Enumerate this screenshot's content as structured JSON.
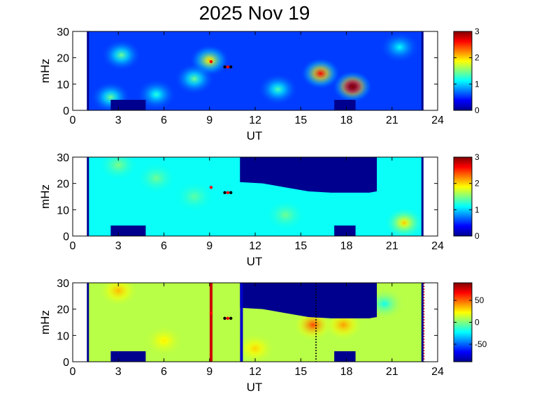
{
  "title": "2025 Nov 19",
  "colors": {
    "background_fill": "#00008f",
    "jet": [
      "#00008f",
      "#0000ff",
      "#0080ff",
      "#00ffff",
      "#80ff80",
      "#ffff00",
      "#ff8000",
      "#ff0000",
      "#800000"
    ]
  },
  "chart_data": [
    {
      "type": "heatmap",
      "xlabel": "UT",
      "ylabel": "mHz",
      "xlim": [
        0,
        24
      ],
      "ylim": [
        0,
        30
      ],
      "xticks": [
        0,
        3,
        6,
        9,
        12,
        15,
        18,
        21,
        24
      ],
      "yticks": [
        0,
        10,
        20,
        30
      ],
      "data_range_ut": [
        1.0,
        23.0
      ],
      "colorbar": {
        "range": [
          0,
          3
        ],
        "ticks": [
          0,
          1,
          2,
          3
        ]
      },
      "base_level": 0.55,
      "blobs": [
        {
          "ut": 3.2,
          "freq": 21,
          "peak": 0.9
        },
        {
          "ut": 9.0,
          "freq": 19,
          "peak": 1.5
        },
        {
          "ut": 8.0,
          "freq": 12,
          "peak": 0.9
        },
        {
          "ut": 2.5,
          "freq": 5,
          "peak": 0.9
        },
        {
          "ut": 5.5,
          "freq": 6,
          "peak": 0.7
        },
        {
          "ut": 16.3,
          "freq": 14,
          "peak": 2.1
        },
        {
          "ut": 18.4,
          "freq": 9,
          "peak": 2.8
        },
        {
          "ut": 13.5,
          "freq": 8,
          "peak": 0.8
        },
        {
          "ut": 21.5,
          "freq": 24,
          "peak": 0.6
        }
      ],
      "gaps": [
        {
          "ut": [
            2.5,
            4.8
          ],
          "freq": [
            0,
            4
          ]
        },
        {
          "ut": [
            17.2,
            18.6
          ],
          "freq": [
            0,
            4
          ]
        }
      ],
      "markers": [
        {
          "ut": 9.1,
          "freq": 18.5,
          "color": "#ff0000"
        },
        {
          "ut": 10.0,
          "freq": 16.5,
          "color": "#000000"
        },
        {
          "ut": 10.2,
          "freq": 16.5,
          "color": "#ff0000"
        },
        {
          "ut": 10.4,
          "freq": 16.5,
          "color": "#000000"
        }
      ],
      "vlines": []
    },
    {
      "type": "heatmap",
      "xlabel": "UT",
      "ylabel": "mHz",
      "xlim": [
        0,
        24
      ],
      "ylim": [
        0,
        30
      ],
      "xticks": [
        0,
        3,
        6,
        9,
        12,
        15,
        18,
        21,
        24
      ],
      "yticks": [
        0,
        10,
        20,
        30
      ],
      "data_range_ut": [
        1.0,
        23.0
      ],
      "colorbar": {
        "range": [
          0,
          3
        ],
        "ticks": [
          0,
          1,
          2,
          3
        ]
      },
      "base_level": 1.15,
      "blobs": [
        {
          "ut": 3.0,
          "freq": 27,
          "peak": 0.35
        },
        {
          "ut": 5.5,
          "freq": 22,
          "peak": 0.3
        },
        {
          "ut": 14.0,
          "freq": 8,
          "peak": 0.3
        },
        {
          "ut": 21.8,
          "freq": 5,
          "peak": 0.9
        },
        {
          "ut": 8.0,
          "freq": 15,
          "peak": 0.25
        }
      ],
      "gaps": [
        {
          "ut": [
            2.5,
            4.8
          ],
          "freq": [
            0,
            4
          ]
        },
        {
          "ut": [
            17.2,
            18.6
          ],
          "freq": [
            0,
            4
          ]
        }
      ],
      "blank_region": {
        "ut": [
          11.0,
          20.0
        ],
        "top_freq": 30,
        "edge": [
          [
            11.0,
            20.5
          ],
          [
            12.5,
            20.0
          ],
          [
            14.0,
            18.5
          ],
          [
            15.5,
            17.0
          ],
          [
            17.0,
            16.5
          ],
          [
            18.5,
            16.5
          ],
          [
            19.5,
            16.5
          ],
          [
            20.0,
            17.0
          ]
        ]
      },
      "markers": [
        {
          "ut": 9.1,
          "freq": 18.5,
          "color": "#ff0000"
        },
        {
          "ut": 10.0,
          "freq": 16.5,
          "color": "#000000"
        },
        {
          "ut": 10.2,
          "freq": 16.5,
          "color": "#ff0000"
        },
        {
          "ut": 10.4,
          "freq": 16.5,
          "color": "#000000"
        }
      ],
      "vlines": []
    },
    {
      "type": "heatmap",
      "xlabel": "UT",
      "ylabel": "mHz",
      "xlim": [
        0,
        24
      ],
      "ylim": [
        0,
        30
      ],
      "xticks": [
        0,
        3,
        6,
        9,
        12,
        15,
        18,
        21,
        24
      ],
      "yticks": [
        0,
        10,
        20,
        30
      ],
      "data_range_ut": [
        1.0,
        23.0
      ],
      "colorbar": {
        "range": [
          -90,
          90
        ],
        "ticks": [
          50,
          0,
          -50
        ]
      },
      "base_level": 10,
      "blobs": [
        {
          "ut": 3.0,
          "freq": 27,
          "peak": 25
        },
        {
          "ut": 15.8,
          "freq": 14,
          "peak": 45
        },
        {
          "ut": 17.8,
          "freq": 14,
          "peak": 30
        },
        {
          "ut": 6.0,
          "freq": 8,
          "peak": 15
        },
        {
          "ut": 20.5,
          "freq": 22,
          "peak": -30
        },
        {
          "ut": 12.0,
          "freq": 5,
          "peak": 20
        }
      ],
      "gaps": [
        {
          "ut": [
            2.5,
            4.8
          ],
          "freq": [
            0,
            4
          ]
        },
        {
          "ut": [
            17.2,
            18.6
          ],
          "freq": [
            0,
            4
          ]
        }
      ],
      "blank_region": {
        "ut": [
          11.0,
          20.0
        ],
        "top_freq": 30,
        "edge": [
          [
            11.0,
            20.5
          ],
          [
            12.5,
            20.0
          ],
          [
            14.0,
            18.5
          ],
          [
            15.5,
            17.0
          ],
          [
            17.0,
            16.5
          ],
          [
            18.5,
            16.5
          ],
          [
            19.5,
            16.5
          ],
          [
            20.0,
            17.0
          ]
        ]
      },
      "markers": [
        {
          "ut": 9.1,
          "freq": 18.5,
          "color": "#ff0000"
        },
        {
          "ut": 10.0,
          "freq": 16.5,
          "color": "#000000"
        },
        {
          "ut": 10.2,
          "freq": 16.5,
          "color": "#ff0000"
        },
        {
          "ut": 10.4,
          "freq": 16.5,
          "color": "#000000"
        }
      ],
      "vlines": [
        {
          "ut": 9.1,
          "color": "#cc0000",
          "style": "solid"
        },
        {
          "ut": 11.1,
          "color": "#0000cc",
          "style": "solid"
        },
        {
          "ut": 16.0,
          "color": "#000000",
          "style": "dotted"
        },
        {
          "ut": 23.1,
          "color": "#cc0000",
          "style": "dotted"
        }
      ]
    }
  ]
}
